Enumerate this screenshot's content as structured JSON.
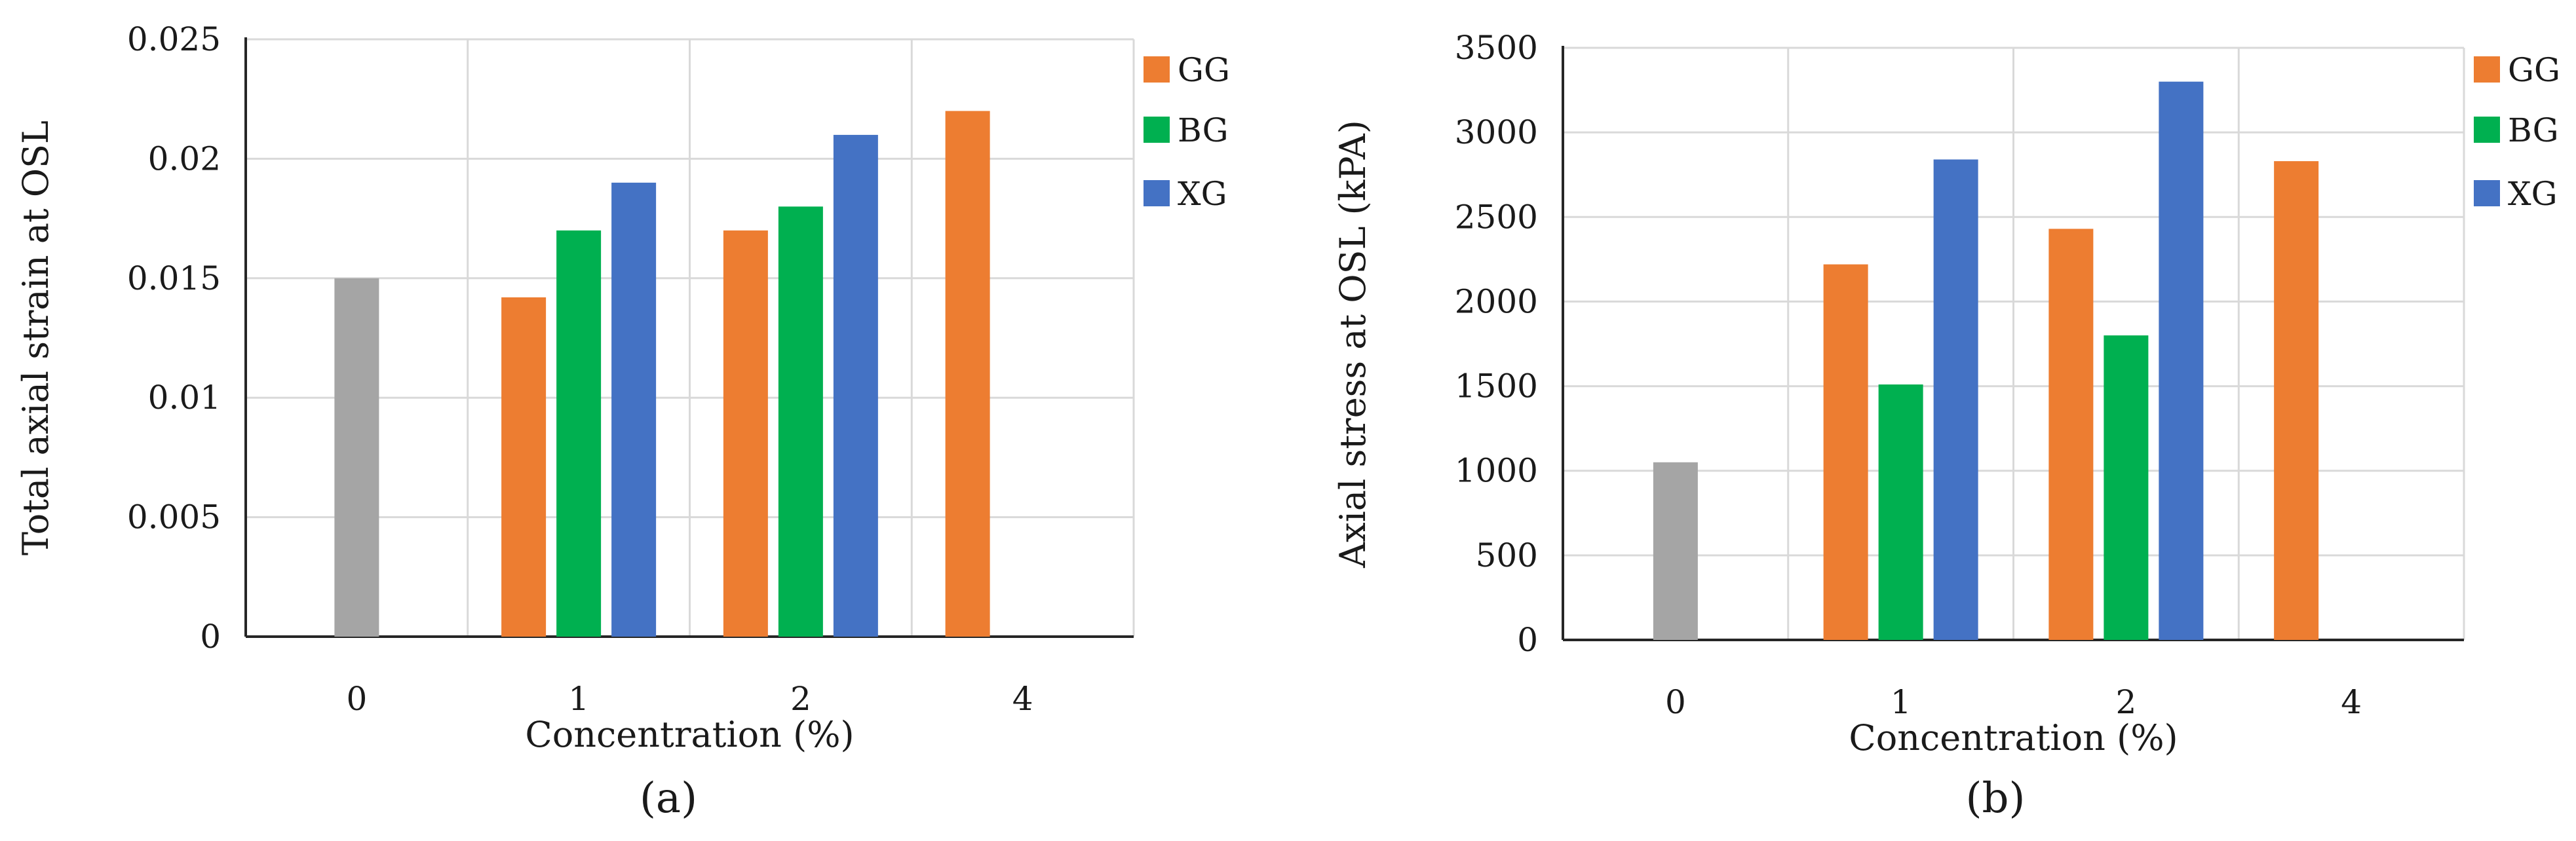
{
  "colors": {
    "GG": "#ED7D31",
    "BG": "#00B050",
    "XG": "#4472C4",
    "Control": "#A5A5A5",
    "grid": "#D9D9D9",
    "axis": "#262626"
  },
  "chart_data": [
    {
      "type": "bar",
      "panel_label": "(a)",
      "xlabel": "Concentration (%)",
      "ylabel": "Total axial strain at OSL",
      "categories": [
        "0",
        "1",
        "2",
        "4"
      ],
      "ylim": [
        0,
        0.025
      ],
      "yticks": [
        "0",
        "0.005",
        "0.01",
        "0.015",
        "0.02",
        "0.025"
      ],
      "grid": true,
      "legend": {
        "placement": "right",
        "entries": [
          "GG",
          "BG",
          "XG"
        ]
      },
      "series": [
        {
          "name": "GG",
          "color": "#ED7D31",
          "values": [
            null,
            0.0142,
            0.017,
            0.022
          ]
        },
        {
          "name": "BG",
          "color": "#00B050",
          "values": [
            null,
            0.017,
            0.018,
            null
          ]
        },
        {
          "name": "XG",
          "color": "#4472C4",
          "values": [
            null,
            0.019,
            0.021,
            null
          ]
        }
      ],
      "control": {
        "category": "0",
        "color": "#A5A5A5",
        "value": 0.015
      }
    },
    {
      "type": "bar",
      "panel_label": "(b)",
      "xlabel": "Concentration (%)",
      "ylabel": "Axial stress at OSL (kPA)",
      "categories": [
        "0",
        "1",
        "2",
        "4"
      ],
      "ylim": [
        0,
        3500
      ],
      "yticks": [
        "0",
        "500",
        "1000",
        "1500",
        "2000",
        "2500",
        "3000",
        "3500"
      ],
      "grid": true,
      "legend": {
        "placement": "right",
        "entries": [
          "GG",
          "BG",
          "XG"
        ]
      },
      "series": [
        {
          "name": "GG",
          "color": "#ED7D31",
          "values": [
            null,
            2220,
            2430,
            2830
          ]
        },
        {
          "name": "BG",
          "color": "#00B050",
          "values": [
            null,
            1510,
            1800,
            null
          ]
        },
        {
          "name": "XG",
          "color": "#4472C4",
          "values": [
            null,
            2840,
            3300,
            null
          ]
        }
      ],
      "control": {
        "category": "0",
        "color": "#A5A5A5",
        "value": 1050
      }
    }
  ]
}
